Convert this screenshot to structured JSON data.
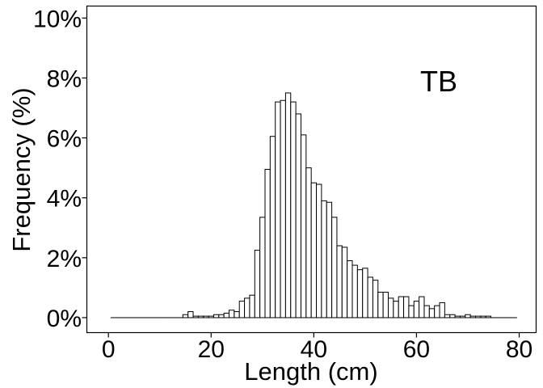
{
  "chart_data": {
    "type": "bar",
    "title": "",
    "annotation": "TB",
    "xlabel": "Length (cm)",
    "ylabel": "Frequency (%)",
    "xlim": [
      -4.2,
      83.3
    ],
    "ylim": [
      -0.5,
      10.4
    ],
    "x_ticks": [
      0,
      20,
      40,
      60,
      80
    ],
    "x_tick_labels": [
      "0",
      "20",
      "40",
      "60",
      "80"
    ],
    "y_ticks": [
      0,
      2,
      4,
      6,
      8,
      10
    ],
    "y_tick_labels": [
      "0%",
      "2%",
      "4%",
      "6%",
      "8%",
      "10%"
    ],
    "grid": false,
    "bin_width": 1,
    "x": [
      1,
      2,
      3,
      4,
      5,
      6,
      7,
      8,
      9,
      10,
      11,
      12,
      13,
      14,
      15,
      16,
      17,
      18,
      19,
      20,
      21,
      22,
      23,
      24,
      25,
      26,
      27,
      28,
      29,
      30,
      31,
      32,
      33,
      34,
      35,
      36,
      37,
      38,
      39,
      40,
      41,
      42,
      43,
      44,
      45,
      46,
      47,
      48,
      49,
      50,
      51,
      52,
      53,
      54,
      55,
      56,
      57,
      58,
      59,
      60,
      61,
      62,
      63,
      64,
      65,
      66,
      67,
      68,
      69,
      70,
      71,
      72,
      73,
      74,
      75,
      76,
      77,
      78,
      79
    ],
    "values": [
      0,
      0,
      0,
      0,
      0,
      0,
      0,
      0,
      0,
      0,
      0,
      0,
      0,
      0,
      0.1,
      0.2,
      0.05,
      0.05,
      0.05,
      0.05,
      0.1,
      0.1,
      0.15,
      0.25,
      0.2,
      0.55,
      0.65,
      0.75,
      2.25,
      3.35,
      4.95,
      6.05,
      7.2,
      7.25,
      7.5,
      7.2,
      6.8,
      6.1,
      5.0,
      4.5,
      4.45,
      3.9,
      3.85,
      3.35,
      2.4,
      2.35,
      1.9,
      1.75,
      1.6,
      1.65,
      1.35,
      1.25,
      0.85,
      0.85,
      0.65,
      0.55,
      0.7,
      0.7,
      0.4,
      0.55,
      0.7,
      0.4,
      0.3,
      0.4,
      0.5,
      0.1,
      0.1,
      0.05,
      0.05,
      0.1,
      0.05,
      0.05,
      0.05,
      0.05,
      0,
      0,
      0,
      0,
      0
    ]
  }
}
